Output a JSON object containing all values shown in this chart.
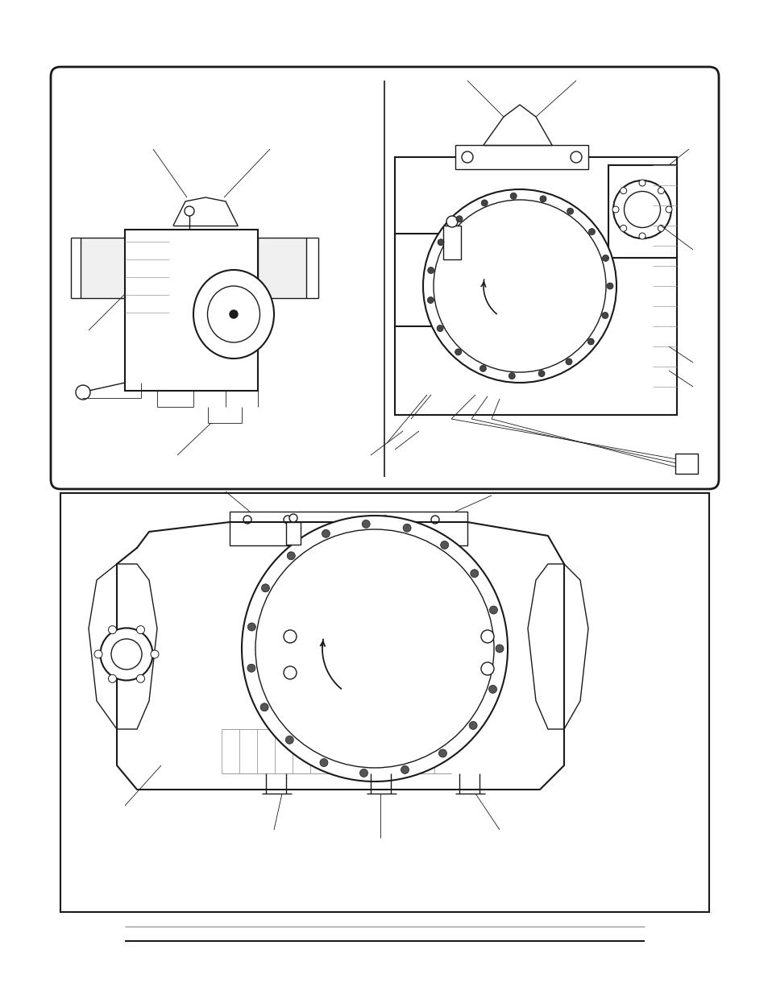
{
  "bg_color": "#ffffff",
  "line_color": "#1a1a1a",
  "gray_color": "#999999",
  "page_width": 9.54,
  "page_height": 12.35,
  "dpi": 100
}
